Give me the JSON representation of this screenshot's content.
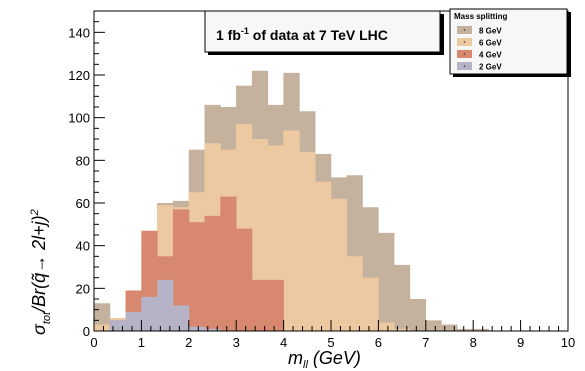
{
  "chart_data": {
    "type": "bar",
    "subtype": "stacked-step-histogram",
    "bin_width": 0.333,
    "xlim": [
      0,
      10
    ],
    "ylim": [
      0,
      150
    ],
    "x_ticks": [
      0,
      1,
      2,
      3,
      4,
      5,
      6,
      7,
      8,
      9,
      10
    ],
    "y_ticks": [
      0,
      20,
      40,
      60,
      80,
      100,
      120,
      140
    ],
    "xlabel": {
      "main": "m",
      "sub": "ll",
      "rest": " (GeV)"
    },
    "ylabel": {
      "sigma": "σ",
      "sub": "tot",
      "rest": "/Br(q̃→ 2l+j)",
      "sup": "2"
    },
    "annotation": {
      "pre": "1 fb",
      "sup": "-1",
      "post": " of data at 7 TeV LHC"
    },
    "legend": {
      "title": "Mass splitting",
      "position": "top-right"
    },
    "series": [
      {
        "name": "8 GeV",
        "color": "#c5b29e",
        "values": [
          13,
          6,
          16,
          16,
          60,
          61,
          85,
          106,
          105,
          115,
          122,
          106,
          121,
          103,
          83,
          72,
          73,
          58,
          46,
          31,
          15,
          5,
          3,
          1,
          1,
          0,
          0,
          0,
          0,
          0
        ]
      },
      {
        "name": "6 GeV",
        "color": "#ecc9a0",
        "values": [
          3,
          6,
          16,
          41,
          59,
          58,
          65,
          88,
          85,
          97,
          90,
          87,
          94,
          84,
          70,
          62,
          35,
          25,
          4,
          1,
          0,
          0,
          0,
          0,
          0,
          0,
          0,
          0,
          0,
          0
        ]
      },
      {
        "name": "4 GeV",
        "color": "#d98870",
        "values": [
          0,
          5,
          19,
          47,
          35,
          57,
          51,
          54,
          63,
          48,
          24,
          24,
          0,
          0,
          0,
          0,
          0,
          0,
          0,
          0,
          0,
          0,
          0,
          0,
          0,
          0,
          0,
          0,
          0,
          0
        ]
      },
      {
        "name": "2 GeV",
        "color": "#b6b3c6",
        "values": [
          0,
          5,
          9,
          16,
          24,
          12,
          2,
          1,
          0,
          0,
          0,
          0,
          0,
          0,
          0,
          0,
          0,
          0,
          0,
          0,
          0,
          0,
          0,
          0,
          0,
          0,
          0,
          0,
          0,
          0
        ]
      }
    ]
  }
}
